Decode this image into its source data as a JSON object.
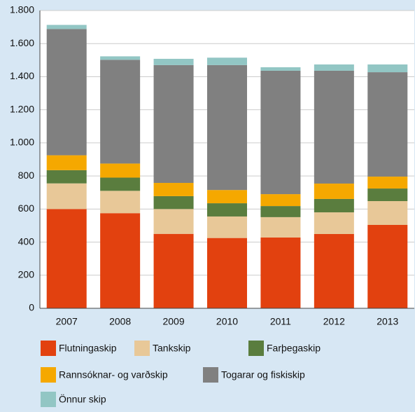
{
  "chart_data": {
    "type": "bar",
    "stacked": true,
    "categories": [
      "2007",
      "2008",
      "2009",
      "2010",
      "2011",
      "2012",
      "2013"
    ],
    "series": [
      {
        "name": "Flutningaskip",
        "color": "#e2410f",
        "values": [
          600,
          575,
          450,
          425,
          428,
          449,
          504
        ]
      },
      {
        "name": "Tankskip",
        "color": "#e8c898",
        "values": [
          155,
          135,
          150,
          130,
          123,
          131,
          144
        ]
      },
      {
        "name": "Farþegaskip",
        "color": "#5a7d3e",
        "values": [
          80,
          80,
          78,
          80,
          67,
          81,
          76
        ]
      },
      {
        "name": "Rannsóknar- og varðskip",
        "color": "#f5a800",
        "values": [
          90,
          85,
          80,
          80,
          72,
          93,
          72
        ]
      },
      {
        "name": "Togarar og fiskiskip",
        "color": "#808080",
        "values": [
          763,
          627,
          712,
          755,
          746,
          682,
          631
        ]
      },
      {
        "name": "Önnur skip",
        "color": "#92c6c4",
        "values": [
          25,
          21,
          38,
          45,
          21,
          38,
          47
        ]
      }
    ],
    "ylim": [
      0,
      1800
    ],
    "yticks": [
      0,
      200,
      400,
      600,
      800,
      {
        "value": 1000,
        "label": "1.000"
      },
      {
        "value": 1200,
        "label": "1.200"
      },
      {
        "value": 1400,
        "label": "1.400"
      },
      {
        "value": 1600,
        "label": "1.600"
      },
      {
        "value": 1800,
        "label": "1.800"
      }
    ],
    "grid": true
  }
}
